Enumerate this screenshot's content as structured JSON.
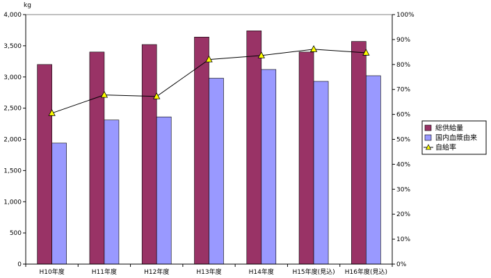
{
  "chart_data": {
    "type": "bar",
    "title": "",
    "y_unit_label": "kg",
    "categories": [
      "H10年度",
      "H11年度",
      "H12年度",
      "H13年度",
      "H14年度",
      "H15年度(見込)",
      "H16年度(見込)"
    ],
    "series": [
      {
        "name": "総供給量",
        "type": "bar",
        "axis": "left",
        "color": "#993366",
        "values": [
          3200,
          3400,
          3520,
          3640,
          3740,
          3400,
          3570
        ]
      },
      {
        "name": "国内血漿由来",
        "type": "bar",
        "axis": "left",
        "color": "#9999ff",
        "values": [
          1940,
          2310,
          2360,
          2980,
          3120,
          2930,
          3020
        ]
      },
      {
        "name": "自給率",
        "type": "line",
        "axis": "right",
        "color": "#000000",
        "marker_color": "#ffff00",
        "values": [
          60.5,
          67.8,
          67.2,
          82.0,
          83.6,
          86.1,
          84.7
        ]
      }
    ],
    "y_left": {
      "min": 0,
      "max": 4000,
      "step": 500,
      "tick_labels": [
        "0",
        "500",
        "1,000",
        "1,500",
        "2,000",
        "2,500",
        "3,000",
        "3,500",
        "4,000"
      ]
    },
    "y_right": {
      "min": 0,
      "max": 100,
      "step": 10,
      "tick_labels": [
        "0%",
        "10%",
        "20%",
        "30%",
        "40%",
        "50%",
        "60%",
        "70%",
        "80%",
        "90%",
        "100%"
      ]
    },
    "grid": false,
    "legend_position": "right"
  }
}
